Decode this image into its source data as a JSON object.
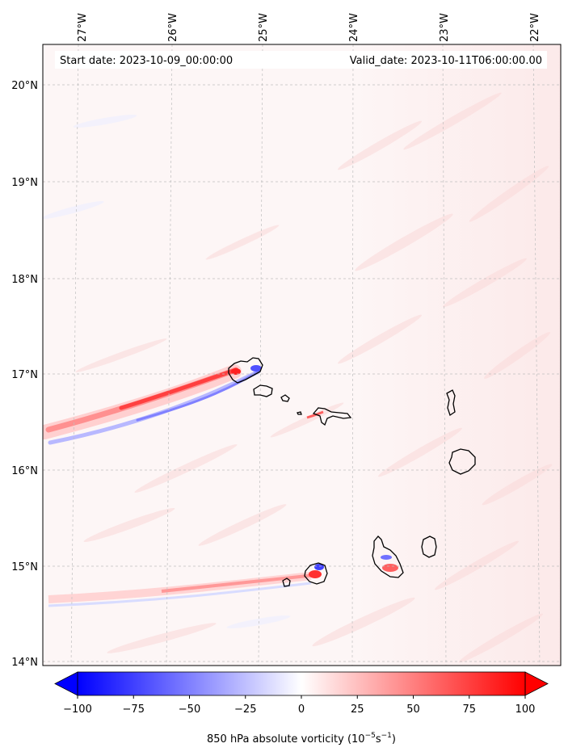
{
  "header": {
    "start_date": "Start date: 2023-10-09_00:00:00",
    "valid_date": "Valid_date: 2023-10-11T06:00:00.00"
  },
  "axes": {
    "lon_labels": [
      "27°W",
      "26°W",
      "25°W",
      "24°W",
      "23°W",
      "22°W"
    ],
    "lat_labels": [
      "20°N",
      "19°N",
      "18°N",
      "17°N",
      "16°N",
      "15°N",
      "14°N"
    ]
  },
  "colorbar": {
    "ticks": [
      "−100",
      "−75",
      "−50",
      "−25",
      "0",
      "25",
      "50",
      "75",
      "100"
    ],
    "label_prefix": "850 hPa absolute vorticity (10",
    "label_exp1": "−5",
    "label_mid": "s",
    "label_exp2": "−1",
    "label_suffix": ")",
    "min": -100,
    "max": 100,
    "color_neg": "#0000ff",
    "color_zero": "#ffffff",
    "color_pos": "#ff0000"
  },
  "field": {
    "background": "#fdf4f4",
    "east_tint": "#fdeaea",
    "filaments": "#fbd6d6"
  }
}
